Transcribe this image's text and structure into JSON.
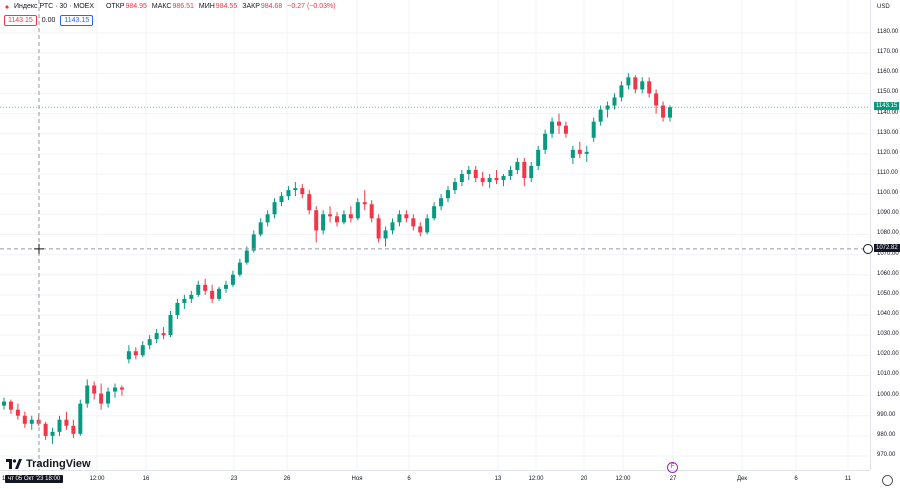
{
  "legend": {
    "title": "Индекс РТС · 30 · MOEX",
    "open_label": "ОТКР",
    "open_value": "984.95",
    "high_label": "МАКС",
    "high_value": "986.51",
    "low_label": "МИН",
    "low_value": "984.55",
    "close_label": "ЗАКР",
    "close_value": "984.68",
    "change": "−0.27 (−0.03%)",
    "bid": "1143.15",
    "spread": "0.00",
    "ask": "1143.15"
  },
  "currency": "USD",
  "last_price_label": "1143.15",
  "crosshair_price_label": "1072.82",
  "crosshair_date_label": "чт 05 Окт '23  18:00",
  "left_edge_tick": "12",
  "logo_text": "TradingView",
  "event_marker": "F",
  "colors": {
    "up": "#089981",
    "down": "#f23645",
    "last_line": "#089981"
  },
  "chart_data": {
    "type": "candlestick",
    "symbol": "Индекс РТС",
    "interval": "30",
    "exchange": "MOEX",
    "ylim": [
      965,
      1190
    ],
    "y_ticks": [
      970,
      980,
      990,
      1000,
      1010,
      1020,
      1030,
      1040,
      1050,
      1060,
      1070,
      1080,
      1090,
      1100,
      1110,
      1120,
      1130,
      1140,
      1150,
      1160,
      1170,
      1180
    ],
    "y_tick_labels": [
      "970.00",
      "980.00",
      "990.00",
      "1000.00",
      "1010.00",
      "1020.00",
      "1030.00",
      "1040.00",
      "1050.00",
      "1060.00",
      "1070.00",
      "1080.00",
      "1090.00",
      "1100.00",
      "1110.00",
      "1120.00",
      "1130.00",
      "1140.00",
      "1150.00",
      "1160.00",
      "1170.00",
      "1180.00"
    ],
    "x_tick_labels": [
      "12:00",
      "16",
      "23",
      "26",
      "Ноя",
      "6",
      "13",
      "12:00",
      "20",
      "12:00",
      "27",
      "Дек",
      "6",
      "11"
    ],
    "last_price": 1143.15,
    "crosshair_price": 1072.82,
    "grid": true,
    "candles": [
      [
        995,
        999,
        993,
        997
      ],
      [
        997,
        998,
        991,
        993
      ],
      [
        993,
        996,
        988,
        990
      ],
      [
        990,
        992,
        984,
        986
      ],
      [
        986,
        990,
        983,
        988
      ],
      [
        988,
        991,
        985,
        986
      ],
      [
        986,
        987,
        978,
        980
      ],
      [
        980,
        984,
        976,
        982
      ],
      [
        982,
        990,
        980,
        988
      ],
      [
        988,
        992,
        983,
        985
      ],
      [
        985,
        988,
        979,
        981
      ],
      [
        981,
        998,
        980,
        996
      ],
      [
        996,
        1008,
        994,
        1005
      ],
      [
        1005,
        1007,
        998,
        1001
      ],
      [
        1001,
        1006,
        993,
        996
      ],
      [
        996,
        1004,
        994,
        1002
      ],
      [
        1002,
        1006,
        999,
        1004
      ],
      [
        1004,
        1005,
        1000,
        1003
      ],
      [
        1018,
        1025,
        1016,
        1022
      ],
      [
        1022,
        1024,
        1018,
        1020
      ],
      [
        1020,
        1027,
        1019,
        1025
      ],
      [
        1025,
        1030,
        1023,
        1028
      ],
      [
        1028,
        1033,
        1026,
        1031
      ],
      [
        1031,
        1034,
        1028,
        1030
      ],
      [
        1030,
        1042,
        1029,
        1040
      ],
      [
        1040,
        1048,
        1038,
        1046
      ],
      [
        1046,
        1050,
        1043,
        1048
      ],
      [
        1048,
        1052,
        1046,
        1050
      ],
      [
        1050,
        1057,
        1049,
        1055
      ],
      [
        1055,
        1058,
        1050,
        1052
      ],
      [
        1052,
        1055,
        1046,
        1048
      ],
      [
        1048,
        1054,
        1047,
        1053
      ],
      [
        1053,
        1057,
        1051,
        1055
      ],
      [
        1055,
        1062,
        1054,
        1060
      ],
      [
        1060,
        1068,
        1059,
        1066
      ],
      [
        1066,
        1074,
        1065,
        1072
      ],
      [
        1072,
        1082,
        1071,
        1080
      ],
      [
        1080,
        1088,
        1079,
        1086
      ],
      [
        1086,
        1092,
        1084,
        1090
      ],
      [
        1090,
        1098,
        1088,
        1096
      ],
      [
        1096,
        1101,
        1094,
        1099
      ],
      [
        1099,
        1104,
        1097,
        1102
      ],
      [
        1102,
        1106,
        1099,
        1103
      ],
      [
        1103,
        1105,
        1098,
        1100
      ],
      [
        1100,
        1102,
        1090,
        1092
      ],
      [
        1092,
        1094,
        1076,
        1082
      ],
      [
        1082,
        1092,
        1080,
        1090
      ],
      [
        1090,
        1094,
        1086,
        1089
      ],
      [
        1089,
        1091,
        1084,
        1086
      ],
      [
        1086,
        1092,
        1085,
        1090
      ],
      [
        1090,
        1094,
        1086,
        1088
      ],
      [
        1088,
        1098,
        1087,
        1096
      ],
      [
        1096,
        1102,
        1092,
        1095
      ],
      [
        1095,
        1097,
        1086,
        1088
      ],
      [
        1088,
        1090,
        1076,
        1078
      ],
      [
        1078,
        1084,
        1074,
        1082
      ],
      [
        1082,
        1088,
        1080,
        1086
      ],
      [
        1086,
        1092,
        1084,
        1090
      ],
      [
        1090,
        1092,
        1086,
        1088
      ],
      [
        1088,
        1090,
        1082,
        1084
      ],
      [
        1084,
        1086,
        1079,
        1081
      ],
      [
        1081,
        1090,
        1080,
        1088
      ],
      [
        1088,
        1096,
        1087,
        1094
      ],
      [
        1094,
        1100,
        1092,
        1098
      ],
      [
        1098,
        1104,
        1096,
        1102
      ],
      [
        1102,
        1108,
        1100,
        1106
      ],
      [
        1106,
        1112,
        1104,
        1110
      ],
      [
        1110,
        1114,
        1107,
        1112
      ],
      [
        1112,
        1114,
        1106,
        1108
      ],
      [
        1108,
        1111,
        1104,
        1106
      ],
      [
        1106,
        1110,
        1103,
        1108
      ],
      [
        1108,
        1112,
        1105,
        1107
      ],
      [
        1107,
        1110,
        1104,
        1109
      ],
      [
        1109,
        1114,
        1107,
        1112
      ],
      [
        1112,
        1118,
        1110,
        1116
      ],
      [
        1116,
        1118,
        1104,
        1108
      ],
      [
        1108,
        1116,
        1106,
        1114
      ],
      [
        1114,
        1124,
        1112,
        1122
      ],
      [
        1122,
        1132,
        1120,
        1130
      ],
      [
        1130,
        1138,
        1128,
        1136
      ],
      [
        1136,
        1140,
        1130,
        1134
      ],
      [
        1134,
        1136,
        1128,
        1130
      ],
      [
        1118,
        1124,
        1115,
        1122
      ],
      [
        1122,
        1126,
        1118,
        1120
      ],
      [
        1120,
        1124,
        1116,
        1121
      ],
      [
        1128,
        1138,
        1126,
        1136
      ],
      [
        1136,
        1144,
        1134,
        1142
      ],
      [
        1142,
        1146,
        1138,
        1144
      ],
      [
        1144,
        1150,
        1142,
        1148
      ],
      [
        1148,
        1156,
        1146,
        1154
      ],
      [
        1154,
        1160,
        1152,
        1158
      ],
      [
        1158,
        1159,
        1150,
        1152
      ],
      [
        1152,
        1158,
        1150,
        1156
      ],
      [
        1156,
        1158,
        1148,
        1150
      ],
      [
        1150,
        1152,
        1140,
        1144
      ],
      [
        1144,
        1146,
        1136,
        1138
      ],
      [
        1138,
        1144,
        1136,
        1143.15
      ]
    ],
    "note_candles": "each candle is [open, high, low, close]"
  }
}
